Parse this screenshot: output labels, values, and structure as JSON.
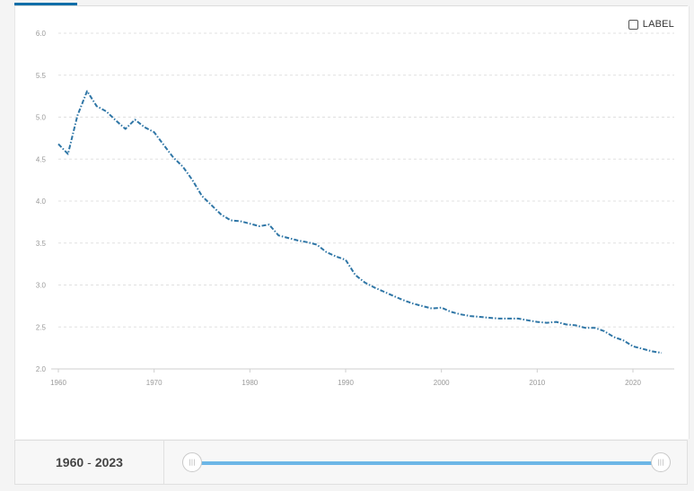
{
  "label_toggle": {
    "text": "LABEL",
    "checked": false
  },
  "range": {
    "start": "1960",
    "separator": "-",
    "end": "2023"
  },
  "colors": {
    "line": "#2f76a6",
    "grid": "#e0e0e0",
    "slider": "#6cb6e6",
    "tab": "#0f6ea8"
  },
  "chart_data": {
    "type": "line",
    "title": "",
    "xlabel": "",
    "ylabel": "",
    "x_ticks": [
      1960,
      1970,
      1980,
      1990,
      2000,
      2010,
      2020
    ],
    "y_ticks": [
      "2.0",
      "2.5",
      "3.0",
      "3.5",
      "4.0",
      "4.5",
      "5.0",
      "5.5",
      "6.0"
    ],
    "xlim": [
      1960,
      2023
    ],
    "ylim": [
      2.0,
      6.0
    ],
    "grid": true,
    "legend": "none",
    "line_style": "dash-dot",
    "series": [
      {
        "x": [
          1960,
          1961,
          1962,
          1963,
          1964,
          1965,
          1966,
          1967,
          1968,
          1969,
          1970,
          1971,
          1972,
          1973,
          1974,
          1975,
          1976,
          1977,
          1978,
          1979,
          1980,
          1981,
          1982,
          1983,
          1984,
          1985,
          1986,
          1987,
          1988,
          1989,
          1990,
          1991,
          1992,
          1993,
          1994,
          1995,
          1996,
          1997,
          1998,
          1999,
          2000,
          2001,
          2002,
          2003,
          2004,
          2005,
          2006,
          2007,
          2008,
          2009,
          2010,
          2011,
          2012,
          2013,
          2014,
          2015,
          2016,
          2017,
          2018,
          2019,
          2020,
          2021,
          2022,
          2023
        ],
        "values": [
          4.68,
          4.56,
          5.02,
          5.31,
          5.13,
          5.07,
          4.96,
          4.86,
          4.97,
          4.88,
          4.82,
          4.67,
          4.52,
          4.41,
          4.25,
          4.06,
          3.95,
          3.84,
          3.77,
          3.76,
          3.73,
          3.7,
          3.72,
          3.59,
          3.56,
          3.53,
          3.51,
          3.48,
          3.39,
          3.34,
          3.3,
          3.12,
          3.03,
          2.97,
          2.92,
          2.87,
          2.82,
          2.78,
          2.75,
          2.72,
          2.73,
          2.68,
          2.65,
          2.63,
          2.62,
          2.61,
          2.6,
          2.6,
          2.6,
          2.58,
          2.56,
          2.55,
          2.56,
          2.53,
          2.52,
          2.49,
          2.49,
          2.45,
          2.38,
          2.34,
          2.27,
          2.24,
          2.21,
          2.19
        ]
      }
    ]
  }
}
